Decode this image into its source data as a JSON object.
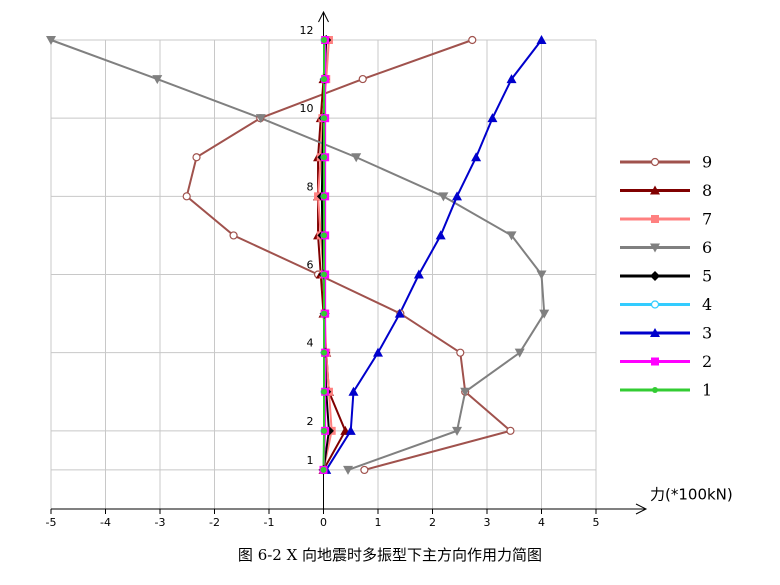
{
  "chart_data": {
    "type": "line",
    "orientation": "horizontal",
    "caption": "图 6-2 X 向地震时多振型下主方向作用力简图",
    "x_label": "力(*100kN)",
    "floors": [
      1,
      2,
      3,
      4,
      5,
      6,
      7,
      8,
      9,
      10,
      11,
      12
    ],
    "xlim": [
      -5,
      5
    ],
    "xticks": [
      -5,
      -4,
      -3,
      -2,
      -1,
      0,
      1,
      2,
      3,
      4,
      5
    ],
    "ylim": [
      0,
      12
    ],
    "yticks": [
      1,
      2,
      4,
      6,
      8,
      10,
      12
    ],
    "grid": true,
    "legend": "right",
    "series": [
      {
        "name": "9",
        "color": "#a0524d",
        "marker": "open-circle",
        "values": [
          0.75,
          3.43,
          2.6,
          2.51,
          1.41,
          -0.1,
          -1.65,
          -2.51,
          -2.33,
          -1.16,
          0.72,
          2.73
        ]
      },
      {
        "name": "8",
        "color": "#800000",
        "marker": "triangle",
        "values": [
          0,
          0.4,
          0.1,
          0.05,
          0,
          -0.05,
          -0.1,
          -0.1,
          -0.1,
          -0.05,
          0,
          0.05
        ]
      },
      {
        "name": "7",
        "color": "#ff8080",
        "marker": "square",
        "values": [
          0,
          0.15,
          0.1,
          0.05,
          0.02,
          0,
          -0.05,
          -0.1,
          -0.05,
          -0.02,
          0.05,
          0.1
        ]
      },
      {
        "name": "6",
        "color": "#808080",
        "marker": "down-triangle",
        "values": [
          0.45,
          2.45,
          2.6,
          3.6,
          4.05,
          4.0,
          3.45,
          2.2,
          0.6,
          -1.15,
          -3.05,
          -5
        ]
      },
      {
        "name": "5",
        "color": "#000000",
        "marker": "diamond",
        "values": [
          0,
          0.1,
          0.05,
          0.03,
          0.02,
          0,
          -0.02,
          -0.03,
          -0.02,
          0,
          0.02,
          0.05
        ]
      },
      {
        "name": "4",
        "color": "#33ccff",
        "marker": "open-circle",
        "values": [
          0,
          0.02,
          0.02,
          0.02,
          0.02,
          0.02,
          0.02,
          0.02,
          0.02,
          0.02,
          0.02,
          0.02
        ]
      },
      {
        "name": "3",
        "color": "#0000cc",
        "marker": "triangle",
        "values": [
          0.05,
          0.5,
          0.55,
          1.0,
          1.4,
          1.75,
          2.15,
          2.45,
          2.8,
          3.1,
          3.45,
          4.0
        ]
      },
      {
        "name": "2",
        "color": "#ff00ff",
        "marker": "square",
        "values": [
          0,
          0.03,
          0.03,
          0.03,
          0.03,
          0.03,
          0.03,
          0.03,
          0.03,
          0.03,
          0.03,
          0.03
        ]
      },
      {
        "name": "1",
        "color": "#33cc33",
        "marker": "circle",
        "values": [
          0,
          0.01,
          0.01,
          0.01,
          0.01,
          0.01,
          0.01,
          0.01,
          0.01,
          0.01,
          0.01,
          0.01
        ]
      }
    ]
  }
}
